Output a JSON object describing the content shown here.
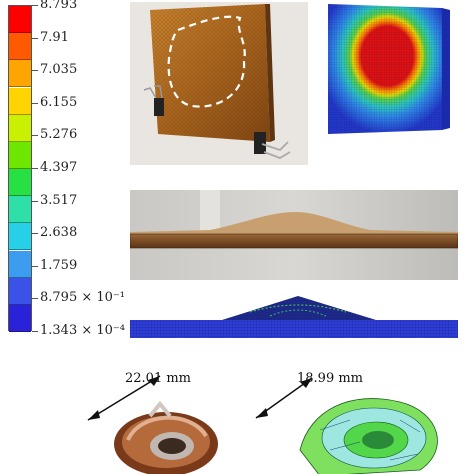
{
  "legend": {
    "labels": [
      "8.793",
      "7.91",
      "7.035",
      "6.155",
      "5.276",
      "4.397",
      "3.517",
      "2.638",
      "1.759",
      "8.795 × 10⁻¹",
      "1.343 × 10⁻⁴"
    ],
    "colors": [
      "#ff0000",
      "#ff5a00",
      "#ffa500",
      "#ffd400",
      "#c8f000",
      "#6fe600",
      "#27e043",
      "#2ee0a8",
      "#27d0e6",
      "#3c9cf0",
      "#3a52e8",
      "#2a22d8"
    ]
  },
  "dimensions": {
    "left": "22.01 mm",
    "right": "18.99 mm"
  }
}
